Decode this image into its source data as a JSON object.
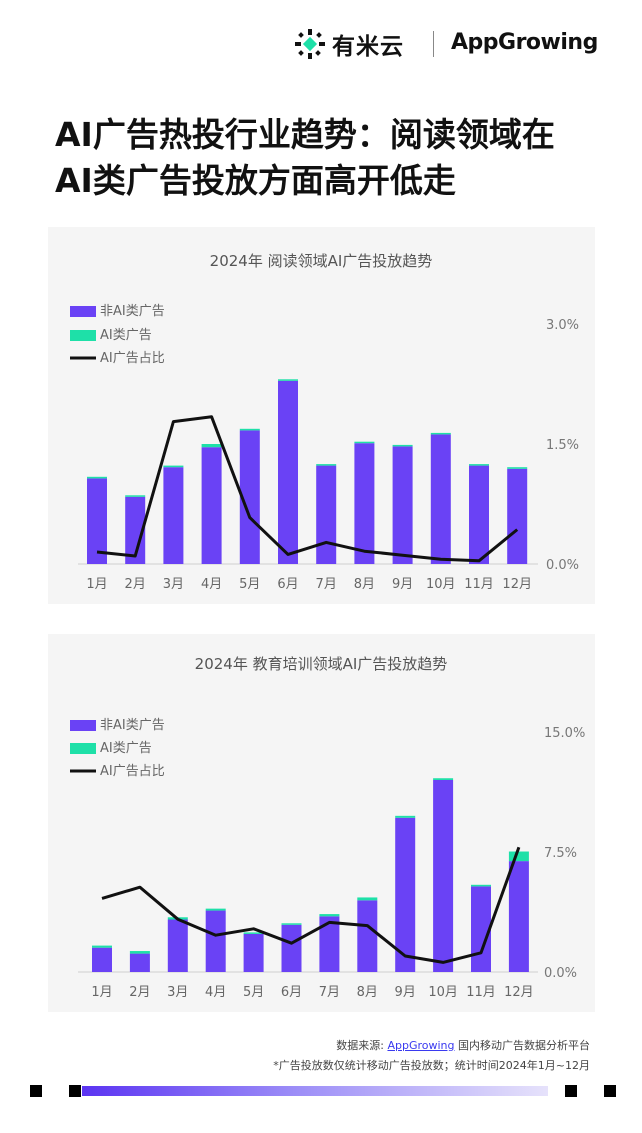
{
  "brand": {
    "youmi_name": "有米云",
    "appgrowing_name": "AppGrowing"
  },
  "headline": {
    "line1": "AI广告热投行业趋势：阅读领域在",
    "line2": "AI类广告投放方面高开低走"
  },
  "colors": {
    "non_ai": "#6a42f5",
    "ai": "#1ee0a8",
    "ratio_line": "#111111",
    "panel_bg": "#f5f5f5"
  },
  "chart_data": [
    {
      "type": "bar",
      "stacked": true,
      "title": "2024年  阅读领域AI广告投放趋势",
      "categories": [
        "1月",
        "2月",
        "3月",
        "4月",
        "5月",
        "6月",
        "7月",
        "8月",
        "9月",
        "10月",
        "11月",
        "12月"
      ],
      "series": [
        {
          "name": "非AI类广告",
          "type": "bar",
          "values": [
            1.07,
            0.84,
            1.21,
            1.46,
            1.67,
            2.29,
            1.23,
            1.51,
            1.47,
            1.62,
            1.23,
            1.19
          ]
        },
        {
          "name": "AI类广告",
          "type": "bar",
          "values": [
            0.02,
            0.01,
            0.02,
            0.04,
            0.02,
            0.01,
            0.01,
            0.01,
            0.01,
            0.01,
            0.01,
            0.02
          ]
        },
        {
          "name": "AI广告占比",
          "type": "line",
          "axis": "right",
          "values": [
            0.15,
            0.1,
            1.78,
            1.84,
            0.58,
            0.12,
            0.27,
            0.16,
            0.11,
            0.06,
            0.04,
            0.43
          ]
        }
      ],
      "y_left_max": 3.0,
      "y_right_ticks": [
        "3.0%",
        "1.5%",
        "0.0%"
      ],
      "y_right_lim": [
        0,
        3.0
      ],
      "legend": "top-left"
    },
    {
      "type": "bar",
      "stacked": true,
      "title": "2024年  教育培训领域AI广告投放趋势",
      "categories": [
        "1月",
        "2月",
        "3月",
        "4月",
        "5月",
        "6月",
        "7月",
        "8月",
        "9月",
        "10月",
        "11月",
        "12月"
      ],
      "series": [
        {
          "name": "非AI类广告",
          "type": "bar",
          "values": [
            1.52,
            1.15,
            3.28,
            3.84,
            2.38,
            2.95,
            3.48,
            4.48,
            9.64,
            12.0,
            5.35,
            6.93
          ]
        },
        {
          "name": "AI类广告",
          "type": "bar",
          "values": [
            0.13,
            0.16,
            0.14,
            0.12,
            0.07,
            0.09,
            0.14,
            0.18,
            0.12,
            0.11,
            0.1,
            0.6
          ]
        },
        {
          "name": "AI广告占比",
          "type": "line",
          "axis": "right",
          "values": [
            4.6,
            5.3,
            3.3,
            2.3,
            2.7,
            1.8,
            3.1,
            2.9,
            1.0,
            0.6,
            1.2,
            7.8
          ]
        }
      ],
      "y_left_max": 15.0,
      "y_right_ticks": [
        "15.0%",
        "7.5%",
        "0.0%"
      ],
      "y_right_lim": [
        0,
        15.0
      ],
      "legend": "top-left"
    }
  ],
  "footer": {
    "source_prefix": "数据来源: ",
    "source_link": "AppGrowing",
    "source_suffix": " 国内移动广告数据分析平台",
    "note": "*广告投放数仅统计移动广告投放数；统计时间2024年1月~12月"
  }
}
